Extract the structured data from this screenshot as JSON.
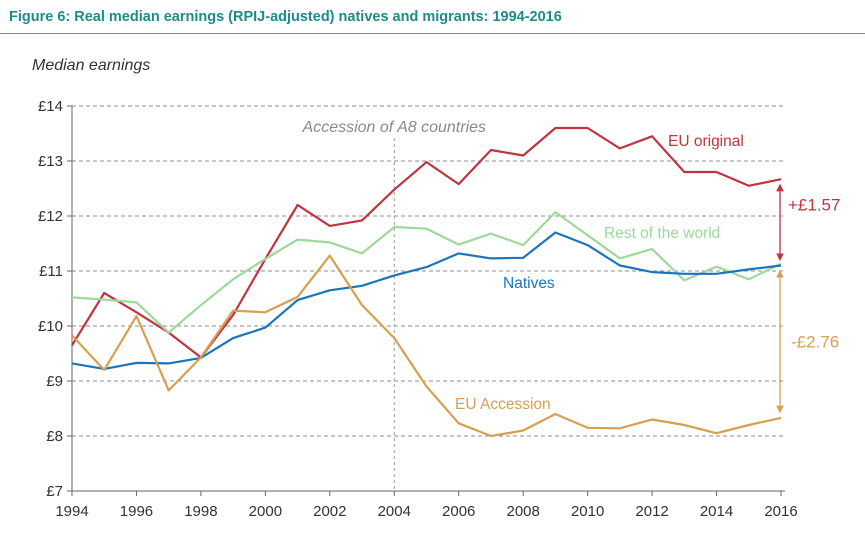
{
  "figure": {
    "title": "Figure 6:  Real median earnings (RPIJ-adjusted) natives and migrants: 1994-2016"
  },
  "chart_data": {
    "type": "line",
    "ylabel": "Median earnings",
    "xlim": [
      1994,
      2016
    ],
    "ylim": [
      7,
      14
    ],
    "x_ticks": [
      1994,
      1996,
      1998,
      2000,
      2002,
      2004,
      2006,
      2008,
      2010,
      2012,
      2014,
      2016
    ],
    "y_ticks": [
      {
        "value": 7,
        "label": "£7"
      },
      {
        "value": 8,
        "label": "£8"
      },
      {
        "value": 9,
        "label": "£9"
      },
      {
        "value": 10,
        "label": "£10"
      },
      {
        "value": 11,
        "label": "£11"
      },
      {
        "value": 12,
        "label": "£12"
      },
      {
        "value": 13,
        "label": "£13"
      },
      {
        "value": 14,
        "label": "£14"
      }
    ],
    "grid": "horizontal",
    "x": [
      1994,
      1995,
      1996,
      1997,
      1998,
      1999,
      2000,
      2001,
      2002,
      2003,
      2004,
      2005,
      2006,
      2007,
      2008,
      2009,
      2010,
      2011,
      2012,
      2013,
      2014,
      2015,
      2016
    ],
    "series": [
      {
        "name": "EU original",
        "color": "#c0343f",
        "values": [
          9.65,
          10.6,
          10.25,
          9.88,
          9.43,
          10.2,
          11.22,
          12.2,
          11.82,
          11.92,
          12.48,
          12.98,
          12.58,
          13.2,
          13.1,
          13.6,
          13.6,
          13.23,
          13.45,
          12.8,
          12.8,
          12.55,
          12.67
        ]
      },
      {
        "name": "Rest of the world",
        "color": "#9ed89a",
        "values": [
          10.52,
          10.48,
          10.43,
          9.88,
          10.38,
          10.85,
          11.22,
          11.57,
          11.52,
          11.32,
          11.8,
          11.77,
          11.48,
          11.68,
          11.47,
          12.07,
          11.65,
          11.23,
          11.4,
          10.83,
          11.08,
          10.85,
          11.13
        ]
      },
      {
        "name": "Natives",
        "color": "#1b75bb",
        "values": [
          9.32,
          9.22,
          9.33,
          9.32,
          9.42,
          9.78,
          9.97,
          10.47,
          10.65,
          10.73,
          10.92,
          11.07,
          11.32,
          11.23,
          11.24,
          11.7,
          11.47,
          11.1,
          10.98,
          10.95,
          10.95,
          11.03,
          11.1
        ]
      },
      {
        "name": "EU Accession",
        "color": "#d6a050",
        "values": [
          9.83,
          9.2,
          10.18,
          8.83,
          9.43,
          10.28,
          10.25,
          10.53,
          11.28,
          10.38,
          9.78,
          8.9,
          8.23,
          8.0,
          8.1,
          8.4,
          8.15,
          8.14,
          8.3,
          8.2,
          8.05,
          8.2,
          8.33
        ]
      }
    ],
    "annotations": [
      {
        "text": "Accession of A8 countries",
        "x": 2004
      }
    ],
    "differences": [
      {
        "text": "+£1.57",
        "from": 11.1,
        "to": 12.67,
        "color": "#c0343f"
      },
      {
        "text": "-£2.76",
        "from": 8.33,
        "to": 11.1,
        "color": "#d6a050"
      }
    ]
  }
}
